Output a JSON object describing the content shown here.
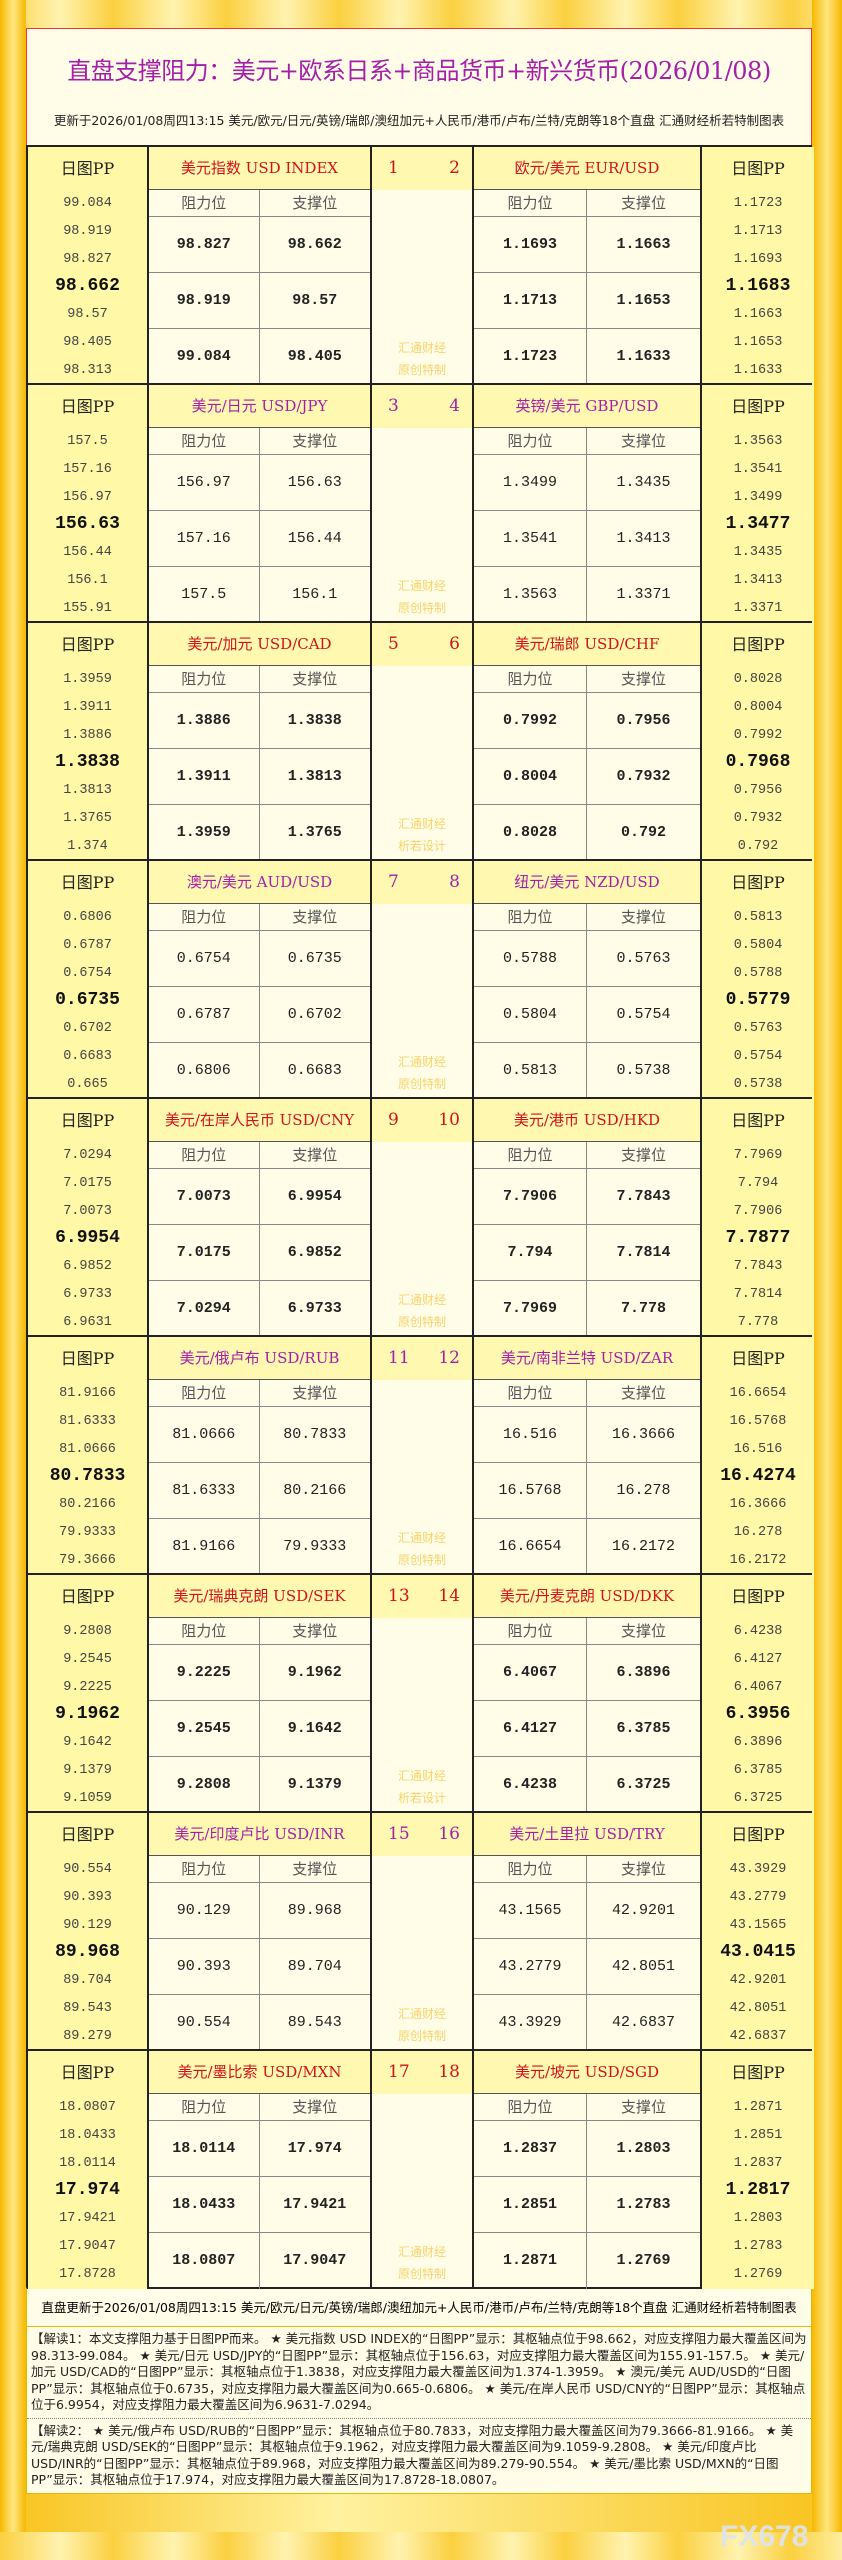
{
  "title": "直盘支撑阻力：美元+欧系日系+商品货币+新兴货币(2026/01/08)",
  "update_text": "更新于2026/01/08周四13:15 美元/欧元/日元/英镑/瑞郎/澳纽加元+人民币/港币/卢布/兰特/克朗等18个直盘 汇通财经析若特制图表",
  "labels": {
    "pp": "日图PP",
    "resistance": "阻力位",
    "support": "支撑位"
  },
  "colors": {
    "red": "#d0121b",
    "purple": "#a31fa8"
  },
  "blocks": [
    {
      "nums": [
        "1",
        "2"
      ],
      "color": "red",
      "bold": true,
      "wm": [
        "汇通财经",
        "原创特制"
      ],
      "left": {
        "name": "美元指数 USD INDEX",
        "pp": [
          "99.084",
          "98.919",
          "98.827",
          "98.662",
          "98.57",
          "98.405",
          "98.313"
        ],
        "rows": [
          [
            "98.827",
            "98.662"
          ],
          [
            "98.919",
            "98.57"
          ],
          [
            "99.084",
            "98.405"
          ]
        ]
      },
      "right": {
        "name": "欧元/美元 EUR/USD",
        "pp": [
          "1.1723",
          "1.1713",
          "1.1693",
          "1.1683",
          "1.1663",
          "1.1653",
          "1.1633"
        ],
        "rows": [
          [
            "1.1693",
            "1.1663"
          ],
          [
            "1.1713",
            "1.1653"
          ],
          [
            "1.1723",
            "1.1633"
          ]
        ]
      }
    },
    {
      "nums": [
        "3",
        "4"
      ],
      "color": "purple",
      "bold": false,
      "wm": [
        "汇通财经",
        "原创特制"
      ],
      "left": {
        "name": "美元/日元 USD/JPY",
        "pp": [
          "157.5",
          "157.16",
          "156.97",
          "156.63",
          "156.44",
          "156.1",
          "155.91"
        ],
        "rows": [
          [
            "156.97",
            "156.63"
          ],
          [
            "157.16",
            "156.44"
          ],
          [
            "157.5",
            "156.1"
          ]
        ]
      },
      "right": {
        "name": "英镑/美元 GBP/USD",
        "pp": [
          "1.3563",
          "1.3541",
          "1.3499",
          "1.3477",
          "1.3435",
          "1.3413",
          "1.3371"
        ],
        "rows": [
          [
            "1.3499",
            "1.3435"
          ],
          [
            "1.3541",
            "1.3413"
          ],
          [
            "1.3563",
            "1.3371"
          ]
        ]
      }
    },
    {
      "nums": [
        "5",
        "6"
      ],
      "color": "red",
      "bold": true,
      "wm": [
        "汇通财经",
        "析若设计"
      ],
      "left": {
        "name": "美元/加元 USD/CAD",
        "pp": [
          "1.3959",
          "1.3911",
          "1.3886",
          "1.3838",
          "1.3813",
          "1.3765",
          "1.374"
        ],
        "rows": [
          [
            "1.3886",
            "1.3838"
          ],
          [
            "1.3911",
            "1.3813"
          ],
          [
            "1.3959",
            "1.3765"
          ]
        ]
      },
      "right": {
        "name": "美元/瑞郎 USD/CHF",
        "pp": [
          "0.8028",
          "0.8004",
          "0.7992",
          "0.7968",
          "0.7956",
          "0.7932",
          "0.792"
        ],
        "rows": [
          [
            "0.7992",
            "0.7956"
          ],
          [
            "0.8004",
            "0.7932"
          ],
          [
            "0.8028",
            "0.792"
          ]
        ]
      }
    },
    {
      "nums": [
        "7",
        "8"
      ],
      "color": "purple",
      "bold": false,
      "wm": [
        "汇通财经",
        "原创特制"
      ],
      "left": {
        "name": "澳元/美元 AUD/USD",
        "pp": [
          "0.6806",
          "0.6787",
          "0.6754",
          "0.6735",
          "0.6702",
          "0.6683",
          "0.665"
        ],
        "rows": [
          [
            "0.6754",
            "0.6735"
          ],
          [
            "0.6787",
            "0.6702"
          ],
          [
            "0.6806",
            "0.6683"
          ]
        ]
      },
      "right": {
        "name": "纽元/美元 NZD/USD",
        "pp": [
          "0.5813",
          "0.5804",
          "0.5788",
          "0.5779",
          "0.5763",
          "0.5754",
          "0.5738"
        ],
        "rows": [
          [
            "0.5788",
            "0.5763"
          ],
          [
            "0.5804",
            "0.5754"
          ],
          [
            "0.5813",
            "0.5738"
          ]
        ]
      }
    },
    {
      "nums": [
        "9",
        "10"
      ],
      "color": "red",
      "bold": true,
      "wm": [
        "汇通财经",
        "原创特制"
      ],
      "left": {
        "name": "美元/在岸人民币 USD/CNY",
        "pp": [
          "7.0294",
          "7.0175",
          "7.0073",
          "6.9954",
          "6.9852",
          "6.9733",
          "6.9631"
        ],
        "rows": [
          [
            "7.0073",
            "6.9954"
          ],
          [
            "7.0175",
            "6.9852"
          ],
          [
            "7.0294",
            "6.9733"
          ]
        ]
      },
      "right": {
        "name": "美元/港币 USD/HKD",
        "pp": [
          "7.7969",
          "7.794",
          "7.7906",
          "7.7877",
          "7.7843",
          "7.7814",
          "7.778"
        ],
        "rows": [
          [
            "7.7906",
            "7.7843"
          ],
          [
            "7.794",
            "7.7814"
          ],
          [
            "7.7969",
            "7.778"
          ]
        ]
      }
    },
    {
      "nums": [
        "11",
        "12"
      ],
      "color": "purple",
      "bold": false,
      "wm": [
        "汇通财经",
        "原创特制"
      ],
      "left": {
        "name": "美元/俄卢布 USD/RUB",
        "pp": [
          "81.9166",
          "81.6333",
          "81.0666",
          "80.7833",
          "80.2166",
          "79.9333",
          "79.3666"
        ],
        "rows": [
          [
            "81.0666",
            "80.7833"
          ],
          [
            "81.6333",
            "80.2166"
          ],
          [
            "81.9166",
            "79.9333"
          ]
        ]
      },
      "right": {
        "name": "美元/南非兰特 USD/ZAR",
        "pp": [
          "16.6654",
          "16.5768",
          "16.516",
          "16.4274",
          "16.3666",
          "16.278",
          "16.2172"
        ],
        "rows": [
          [
            "16.516",
            "16.3666"
          ],
          [
            "16.5768",
            "16.278"
          ],
          [
            "16.6654",
            "16.2172"
          ]
        ]
      }
    },
    {
      "nums": [
        "13",
        "14"
      ],
      "color": "red",
      "bold": true,
      "wm": [
        "汇通财经",
        "析若设计"
      ],
      "left": {
        "name": "美元/瑞典克朗 USD/SEK",
        "pp": [
          "9.2808",
          "9.2545",
          "9.2225",
          "9.1962",
          "9.1642",
          "9.1379",
          "9.1059"
        ],
        "rows": [
          [
            "9.2225",
            "9.1962"
          ],
          [
            "9.2545",
            "9.1642"
          ],
          [
            "9.2808",
            "9.1379"
          ]
        ]
      },
      "right": {
        "name": "美元/丹麦克朗 USD/DKK",
        "pp": [
          "6.4238",
          "6.4127",
          "6.4067",
          "6.3956",
          "6.3896",
          "6.3785",
          "6.3725"
        ],
        "rows": [
          [
            "6.4067",
            "6.3896"
          ],
          [
            "6.4127",
            "6.3785"
          ],
          [
            "6.4238",
            "6.3725"
          ]
        ]
      }
    },
    {
      "nums": [
        "15",
        "16"
      ],
      "color": "purple",
      "bold": false,
      "wm": [
        "汇通财经",
        "原创特制"
      ],
      "left": {
        "name": "美元/印度卢比 USD/INR",
        "pp": [
          "90.554",
          "90.393",
          "90.129",
          "89.968",
          "89.704",
          "89.543",
          "89.279"
        ],
        "rows": [
          [
            "90.129",
            "89.968"
          ],
          [
            "90.393",
            "89.704"
          ],
          [
            "90.554",
            "89.543"
          ]
        ]
      },
      "right": {
        "name": "美元/土里拉 USD/TRY",
        "pp": [
          "43.3929",
          "43.2779",
          "43.1565",
          "43.0415",
          "42.9201",
          "42.8051",
          "42.6837"
        ],
        "rows": [
          [
            "43.1565",
            "42.9201"
          ],
          [
            "43.2779",
            "42.8051"
          ],
          [
            "43.3929",
            "42.6837"
          ]
        ]
      }
    },
    {
      "nums": [
        "17",
        "18"
      ],
      "color": "red",
      "bold": true,
      "wm": [
        "汇通财经",
        "原创特制"
      ],
      "left": {
        "name": "美元/墨比索 USD/MXN",
        "pp": [
          "18.0807",
          "18.0433",
          "18.0114",
          "17.974",
          "17.9421",
          "17.9047",
          "17.8728"
        ],
        "rows": [
          [
            "18.0114",
            "17.974"
          ],
          [
            "18.0433",
            "17.9421"
          ],
          [
            "18.0807",
            "17.9047"
          ]
        ]
      },
      "right": {
        "name": "美元/坡元 USD/SGD",
        "pp": [
          "1.2871",
          "1.2851",
          "1.2837",
          "1.2817",
          "1.2803",
          "1.2783",
          "1.2769"
        ],
        "rows": [
          [
            "1.2837",
            "1.2803"
          ],
          [
            "1.2851",
            "1.2783"
          ],
          [
            "1.2871",
            "1.2769"
          ]
        ]
      }
    }
  ],
  "footer": {
    "update_text": "直盘更新于2026/01/08周四13:15 美元/欧元/日元/英镑/瑞郎/澳纽加元+人民币/港币/卢布/兰特/克朗等18个直盘 汇通财经析若特制图表",
    "note1": "【解读1：本文支撑阻力基于日图PP而来。 ★ 美元指数 USD INDEX的“日图PP”显示：其枢轴点位于98.662，对应支撑阻力最大覆盖区间为98.313-99.084。 ★ 美元/日元 USD/JPY的“日图PP”显示：其枢轴点位于156.63，对应支撑阻力最大覆盖区间为155.91-157.5。 ★ 美元/加元 USD/CAD的“日图PP”显示：其枢轴点位于1.3838，对应支撑阻力最大覆盖区间为1.374-1.3959。 ★ 澳元/美元 AUD/USD的“日图PP”显示：其枢轴点位于0.6735，对应支撑阻力最大覆盖区间为0.665-0.6806。 ★ 美元/在岸人民币 USD/CNY的“日图PP”显示：其枢轴点位于6.9954，对应支撑阻力最大覆盖区间为6.9631-7.0294。",
    "note2": "【解读2： ★ 美元/俄卢布 USD/RUB的“日图PP”显示：其枢轴点位于80.7833，对应支撑阻力最大覆盖区间为79.3666-81.9166。 ★ 美元/瑞典克朗 USD/SEK的“日图PP”显示：其枢轴点位于9.1962，对应支撑阻力最大覆盖区间为9.1059-9.2808。 ★ 美元/印度卢比 USD/INR的“日图PP”显示：其枢轴点位于89.968，对应支撑阻力最大覆盖区间为89.279-90.554。 ★ 美元/墨比索 USD/MXN的“日图PP”显示：其枢轴点位于17.974，对应支撑阻力最大覆盖区间为17.8728-18.0807。"
  },
  "watermark_logo": "FX678"
}
